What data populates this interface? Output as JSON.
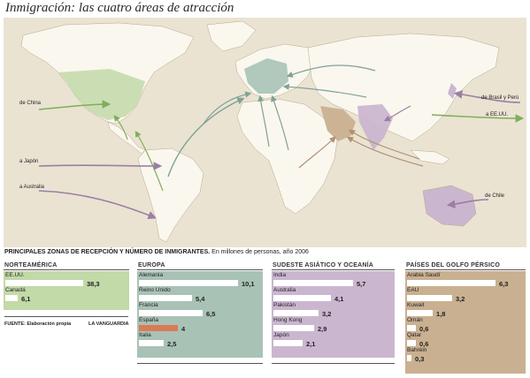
{
  "title": "Inmigración: las cuatro áreas de atracción",
  "subtitle_bold": "PRINCIPALES ZONAS DE RECEPCIÓN Y NÚMERO DE INMIGRANTES.",
  "subtitle_rest": " En millones de personas, año 2006",
  "map_labels": {
    "from_china": "de China",
    "to_japan": "a Japón",
    "to_australia": "a Australia",
    "from_brazil_peru": "de Brasil y Perú",
    "to_usa": "a EE.UU.",
    "from_chile": "de Chile"
  },
  "colors": {
    "ocean": "#eae3d2",
    "land": "#faf7ef",
    "north_america": "#c2d9a8",
    "europe": "#a9c2b6",
    "southeast_asia_oceania": "#cbb6cf",
    "gulf": "#c9b090",
    "spain_bar": "#d87c55"
  },
  "panels": [
    {
      "name": "NORTEAMÉRICA",
      "color": "#c2d9a8",
      "rows": [
        {
          "label": "EE.UU.",
          "value": "38,3",
          "num": 38.3
        },
        {
          "label": "Canadá",
          "value": "6,1",
          "num": 6.1
        }
      ]
    },
    {
      "name": "EUROPA",
      "color": "#a9c2b6",
      "rows": [
        {
          "label": "Alemania",
          "value": "10,1",
          "num": 10.1
        },
        {
          "label": "Reino Unido",
          "value": "5,4",
          "num": 5.4
        },
        {
          "label": "Francia",
          "value": "6,5",
          "num": 6.5
        },
        {
          "label": "España",
          "value": "4",
          "num": 4,
          "highlight": true
        },
        {
          "label": "Italia",
          "value": "2,5",
          "num": 2.5
        }
      ]
    },
    {
      "name": "SUDESTE ASIÁTICO Y OCEANÍA",
      "color": "#cbb6cf",
      "rows": [
        {
          "label": "India",
          "value": "5,7",
          "num": 5.7
        },
        {
          "label": "Australia",
          "value": "4,1",
          "num": 4.1
        },
        {
          "label": "Pakistán",
          "value": "3,2",
          "num": 3.2
        },
        {
          "label": "Hong Kong",
          "value": "2,9",
          "num": 2.9
        },
        {
          "label": "Japón",
          "value": "2,1",
          "num": 2.1
        }
      ]
    },
    {
      "name": "PAÍSES DEL GOLFO PÉRSICO",
      "color": "#c9b090",
      "rows": [
        {
          "label": "Arabia Saudí",
          "value": "6,3",
          "num": 6.3
        },
        {
          "label": "EAU",
          "value": "3,2",
          "num": 3.2
        },
        {
          "label": "Kuwait",
          "value": "1,8",
          "num": 1.8
        },
        {
          "label": "Omán",
          "value": "0,6",
          "num": 0.6
        },
        {
          "label": "Qatar",
          "value": "0,6",
          "num": 0.6
        },
        {
          "label": "Bahréin",
          "value": "0,3",
          "num": 0.3
        }
      ]
    }
  ],
  "source": "FUENTE: Elaboración propia",
  "credit": "LA VANGUARDIA"
}
